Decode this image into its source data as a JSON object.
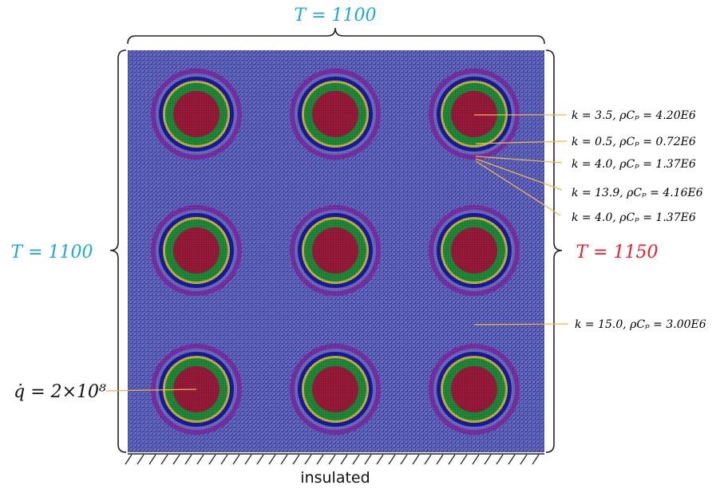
{
  "boundaries": {
    "top": "T = 1100",
    "left": "T = 1100",
    "right": "T = 1150",
    "bottom": "insulated"
  },
  "source": "q̇ = 2×10⁸",
  "materials": [
    "k =  3.5, ρCₚ = 4.20E6",
    "k =  0.5, ρCₚ = 0.72E6",
    "k =  4.0, ρCₚ = 1.37E6",
    "k = 13.9, ρCₚ = 4.16E6",
    "k =  4.0, ρCₚ = 1.37E6",
    "k = 15.0, ρCₚ = 3.00E6"
  ]
}
